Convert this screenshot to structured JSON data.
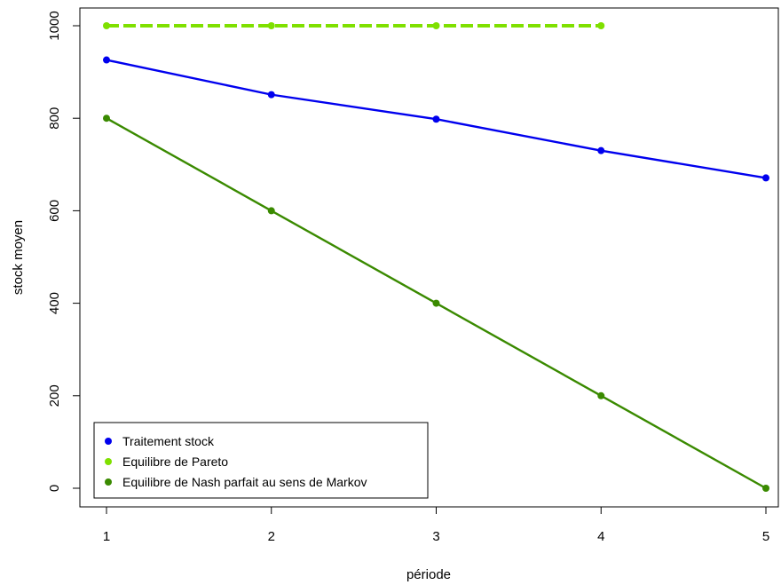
{
  "chart_data": {
    "type": "line",
    "title": "",
    "xlabel": "période",
    "ylabel": "stock moyen",
    "x": [
      1,
      2,
      3,
      4,
      5
    ],
    "xlim": [
      1,
      5
    ],
    "ylim": [
      0,
      1000
    ],
    "xticks": [
      "1",
      "2",
      "3",
      "4",
      "5"
    ],
    "yticks": [
      "0",
      "200",
      "400",
      "600",
      "800",
      "1000"
    ],
    "grid": false,
    "legend_position": "bottom-left",
    "series": [
      {
        "name": "Traitement stock",
        "color": "#0000ee",
        "style": "solid",
        "x": [
          1,
          2,
          3,
          4,
          5
        ],
        "values": [
          926,
          851,
          798,
          730,
          671
        ]
      },
      {
        "name": "Equilibre de Pareto",
        "color": "#7fe000",
        "style": "dashed",
        "x": [
          1,
          2,
          3,
          4
        ],
        "values": [
          1000,
          1000,
          1000,
          1000
        ]
      },
      {
        "name": "Equilibre de Nash parfait au sens de Markov",
        "color": "#3a8a00",
        "style": "solid",
        "x": [
          1,
          2,
          3,
          4,
          5
        ],
        "values": [
          800,
          600,
          400,
          200,
          0
        ]
      }
    ]
  }
}
